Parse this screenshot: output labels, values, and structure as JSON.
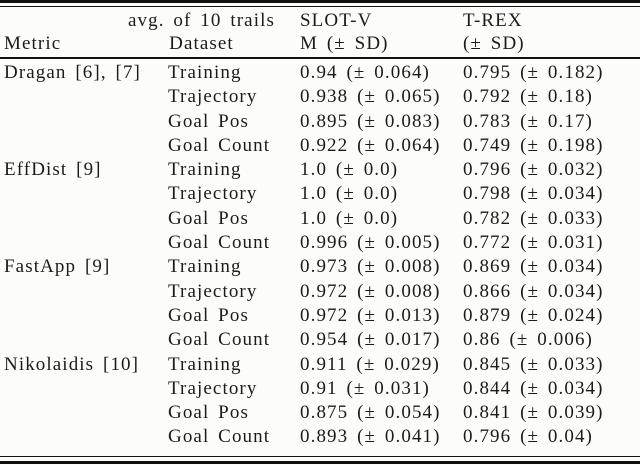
{
  "table": {
    "header": {
      "metric": "Metric",
      "dataset_line1": "avg. of 10 trails",
      "dataset_line2": "Dataset",
      "slotv_line1": "SLOT-V",
      "slotv_line2": "M (± SD)",
      "trex_line1": "T-REX",
      "trex_line2": "(± SD)"
    },
    "groups": [
      {
        "metric": "Dragan [6], [7]",
        "rows": [
          {
            "dataset": "Training",
            "slotv": "0.94 (± 0.064)",
            "trex": "0.795 (± 0.182)"
          },
          {
            "dataset": "Trajectory",
            "slotv": "0.938 (± 0.065)",
            "trex": "0.792 (± 0.18)"
          },
          {
            "dataset": "Goal Pos",
            "slotv": "0.895 (± 0.083)",
            "trex": "0.783 (± 0.17)"
          },
          {
            "dataset": "Goal Count",
            "slotv": "0.922 (± 0.064)",
            "trex": "0.749 (± 0.198)"
          }
        ]
      },
      {
        "metric": "EffDist [9]",
        "rows": [
          {
            "dataset": "Training",
            "slotv": "1.0 (± 0.0)",
            "trex": "0.796 (± 0.032)"
          },
          {
            "dataset": "Trajectory",
            "slotv": "1.0 (± 0.0)",
            "trex": "0.798 (± 0.034)"
          },
          {
            "dataset": "Goal Pos",
            "slotv": "1.0 (± 0.0)",
            "trex": "0.782 (± 0.033)"
          },
          {
            "dataset": "Goal Count",
            "slotv": "0.996 (± 0.005)",
            "trex": "0.772 (± 0.031)"
          }
        ]
      },
      {
        "metric": "FastApp [9]",
        "rows": [
          {
            "dataset": "Training",
            "slotv": "0.973 (± 0.008)",
            "trex": "0.869 (± 0.034)"
          },
          {
            "dataset": "Trajectory",
            "slotv": "0.972 (± 0.008)",
            "trex": "0.866 (± 0.034)"
          },
          {
            "dataset": "Goal Pos",
            "slotv": "0.972 (± 0.013)",
            "trex": "0.879 (± 0.024)"
          },
          {
            "dataset": "Goal Count",
            "slotv": "0.954 (± 0.017)",
            "trex": "0.86 (± 0.006)"
          }
        ]
      },
      {
        "metric": "Nikolaidis [10]",
        "rows": [
          {
            "dataset": "Training",
            "slotv": "0.911 (± 0.029)",
            "trex": "0.845 (± 0.033)"
          },
          {
            "dataset": "Trajectory",
            "slotv": "0.91 (± 0.031)",
            "trex": "0.844 (± 0.034)"
          },
          {
            "dataset": "Goal Pos",
            "slotv": "0.875 (± 0.054)",
            "trex": "0.841 (± 0.039)"
          },
          {
            "dataset": "Goal Count",
            "slotv": "0.893 (± 0.041)",
            "trex": "0.796 (± 0.04)"
          }
        ]
      }
    ]
  },
  "colors": {
    "text": "#1b1b1b",
    "rule": "#121212",
    "background": "#fcfcfb"
  }
}
